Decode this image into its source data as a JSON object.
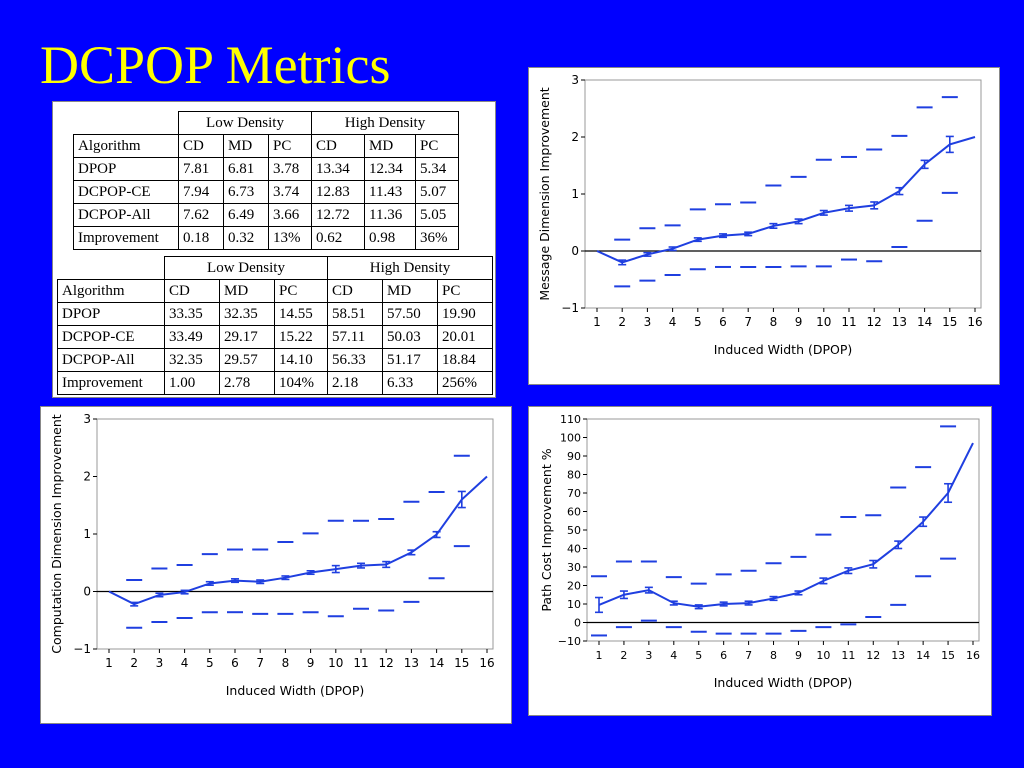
{
  "slide": {
    "title": "DCPOP Metrics",
    "background": "#0000FF",
    "title_color": "#FFFF00"
  },
  "tables": [
    {
      "group_headers": [
        "Low Density",
        "High Density"
      ],
      "columns": [
        "Algorithm",
        "CD",
        "MD",
        "PC",
        "CD",
        "MD",
        "PC"
      ],
      "rows": [
        [
          "DPOP",
          "7.81",
          "6.81",
          "3.78",
          "13.34",
          "12.34",
          "5.34"
        ],
        [
          "DCPOP-CE",
          "7.94",
          "6.73",
          "3.74",
          "12.83",
          "11.43",
          "5.07"
        ],
        [
          "DCPOP-All",
          "7.62",
          "6.49",
          "3.66",
          "12.72",
          "11.36",
          "5.05"
        ],
        [
          "Improvement",
          "0.18",
          "0.32",
          "13%",
          "0.62",
          "0.98",
          "36%"
        ]
      ]
    },
    {
      "group_headers": [
        "Low Density",
        "High Density"
      ],
      "columns": [
        "Algorithm",
        "CD",
        "MD",
        "PC",
        "CD",
        "MD",
        "PC"
      ],
      "rows": [
        [
          "DPOP",
          "33.35",
          "32.35",
          "14.55",
          "58.51",
          "57.50",
          "19.90"
        ],
        [
          "DCPOP-CE",
          "33.49",
          "29.17",
          "15.22",
          "57.11",
          "50.03",
          "20.01"
        ],
        [
          "DCPOP-All",
          "32.35",
          "29.57",
          "14.10",
          "56.33",
          "51.17",
          "18.84"
        ],
        [
          "Improvement",
          "1.00",
          "2.78",
          "104%",
          "2.18",
          "6.33",
          "256%"
        ]
      ]
    }
  ],
  "chart_data": [
    {
      "type": "line",
      "xlabel": "Induced Width (DPOP)",
      "ylabel": "Message Dimension Improvement",
      "ylim": [
        -1,
        3
      ],
      "yticks": [
        -1,
        0,
        1,
        2,
        3
      ],
      "x": [
        1,
        2,
        3,
        4,
        5,
        6,
        7,
        8,
        9,
        10,
        11,
        12,
        13,
        14,
        15,
        16
      ],
      "series": [
        {
          "values": [
            0,
            -0.2,
            -0.06,
            0.04,
            0.2,
            0.27,
            0.3,
            0.44,
            0.52,
            0.67,
            0.75,
            0.8,
            1.05,
            1.52,
            1.87,
            2.0
          ],
          "err": [
            0,
            0.04,
            0.03,
            0.03,
            0.03,
            0.03,
            0.03,
            0.04,
            0.04,
            0.04,
            0.05,
            0.06,
            0.06,
            0.07,
            0.14,
            0
          ]
        }
      ],
      "upper": [
        null,
        0.2,
        0.4,
        0.45,
        0.73,
        0.82,
        0.85,
        1.15,
        1.3,
        1.6,
        1.65,
        1.78,
        2.02,
        2.52,
        2.7,
        null
      ],
      "lower": [
        null,
        -0.62,
        -0.52,
        -0.42,
        -0.32,
        -0.28,
        -0.28,
        -0.28,
        -0.27,
        -0.27,
        -0.15,
        -0.18,
        0.07,
        0.53,
        1.02,
        null
      ],
      "color": "#1F3FE0"
    },
    {
      "type": "line",
      "xlabel": "Induced Width (DPOP)",
      "ylabel": "Computation Dimension Improvement",
      "ylim": [
        -1,
        3
      ],
      "yticks": [
        -1,
        0,
        1,
        2,
        3
      ],
      "x": [
        1,
        2,
        3,
        4,
        5,
        6,
        7,
        8,
        9,
        10,
        11,
        12,
        13,
        14,
        15,
        16
      ],
      "series": [
        {
          "values": [
            0,
            -0.22,
            -0.06,
            -0.01,
            0.14,
            0.19,
            0.17,
            0.24,
            0.33,
            0.39,
            0.45,
            0.47,
            0.68,
            0.99,
            1.6,
            2.0
          ],
          "err": [
            0,
            0.03,
            0.03,
            0.03,
            0.03,
            0.03,
            0.03,
            0.03,
            0.03,
            0.06,
            0.04,
            0.05,
            0.04,
            0.05,
            0.14,
            0
          ]
        }
      ],
      "upper": [
        null,
        0.2,
        0.4,
        0.46,
        0.65,
        0.73,
        0.73,
        0.86,
        1.01,
        1.23,
        1.23,
        1.26,
        1.56,
        1.73,
        2.36,
        null
      ],
      "lower": [
        null,
        -0.63,
        -0.53,
        -0.46,
        -0.36,
        -0.36,
        -0.39,
        -0.39,
        -0.36,
        -0.43,
        -0.3,
        -0.33,
        -0.18,
        0.23,
        0.79,
        null
      ],
      "color": "#1F3FE0"
    },
    {
      "type": "line",
      "xlabel": "Induced Width (DPOP)",
      "ylabel": "Path  Cost Improvement %",
      "ylim": [
        -10,
        110
      ],
      "yticks": [
        -10,
        0,
        10,
        20,
        30,
        40,
        50,
        60,
        70,
        80,
        90,
        100,
        110
      ],
      "x": [
        1,
        2,
        3,
        4,
        5,
        6,
        7,
        8,
        9,
        10,
        11,
        12,
        13,
        14,
        15,
        16
      ],
      "series": [
        {
          "values": [
            9.5,
            15,
            17.5,
            10.5,
            8.5,
            10,
            10.5,
            13,
            16,
            22.5,
            28,
            31.5,
            42,
            54.5,
            70,
            97
          ],
          "err": [
            4,
            2,
            1.5,
            1,
            1,
            1,
            1,
            1,
            1,
            1.5,
            1.5,
            2,
            2,
            2.5,
            5,
            0
          ]
        }
      ],
      "upper": [
        25,
        33,
        33,
        24.5,
        21,
        26,
        28,
        32,
        35.5,
        47.5,
        57,
        58,
        73,
        84,
        106,
        null
      ],
      "lower": [
        -7,
        -2.5,
        1,
        -2.5,
        -5,
        -6,
        -6,
        -6,
        -4.5,
        -2.5,
        -1,
        3,
        9.5,
        25,
        34.5,
        null
      ],
      "color": "#1F3FE0"
    }
  ]
}
